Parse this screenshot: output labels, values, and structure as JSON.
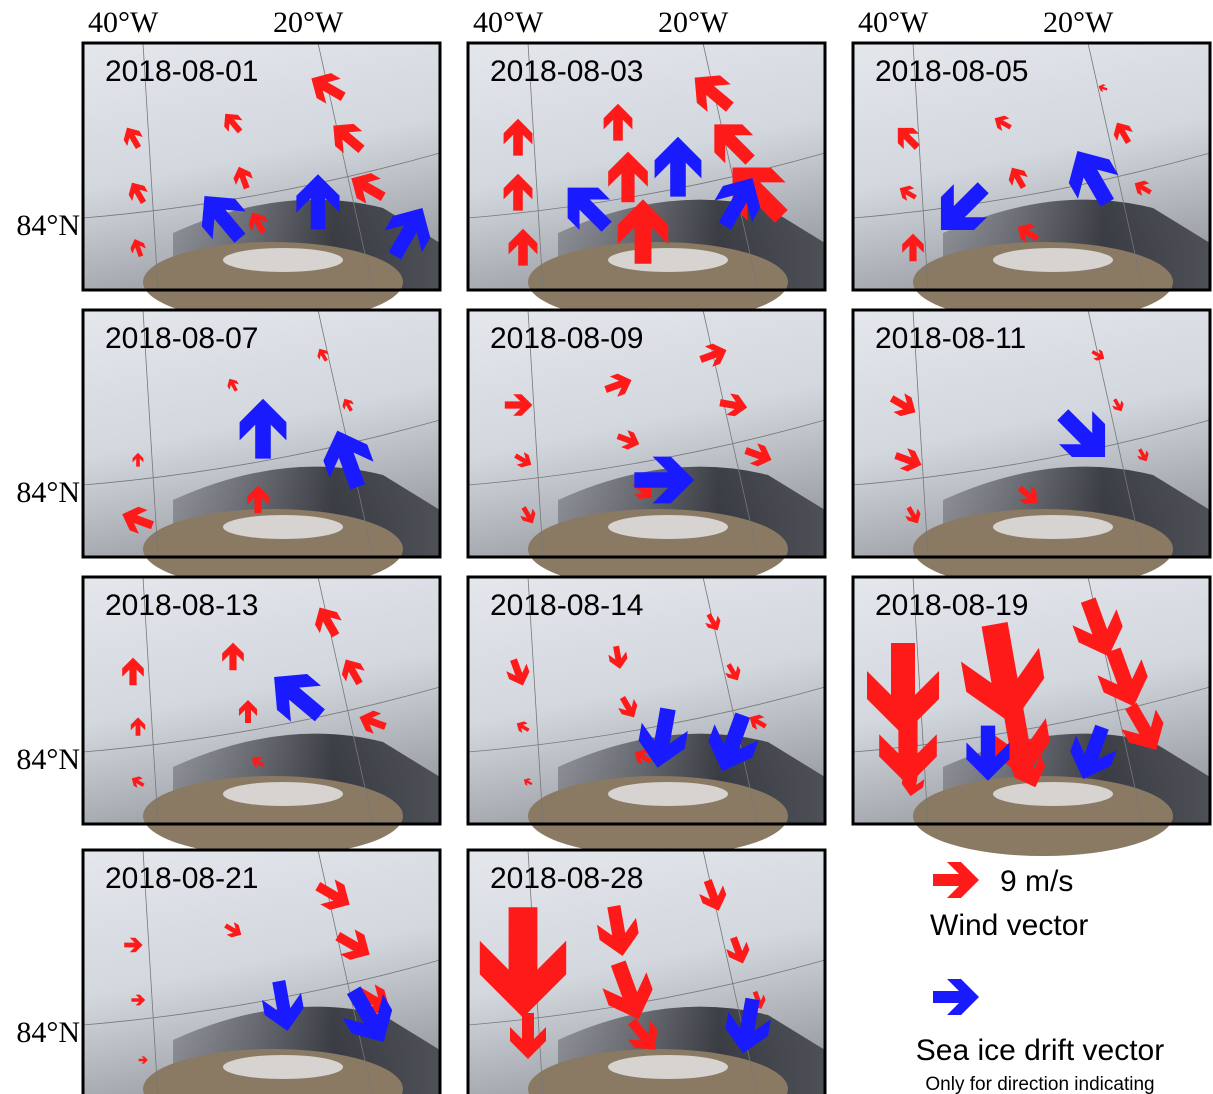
{
  "column_labels": [
    "40°W",
    "20°W"
  ],
  "row_label": "84°N",
  "panels": [
    {
      "date": "2018-08-01"
    },
    {
      "date": "2018-08-03"
    },
    {
      "date": "2018-08-05"
    },
    {
      "date": "2018-08-07"
    },
    {
      "date": "2018-08-09"
    },
    {
      "date": "2018-08-11"
    },
    {
      "date": "2018-08-13"
    },
    {
      "date": "2018-08-14"
    },
    {
      "date": "2018-08-19"
    },
    {
      "date": "2018-08-21"
    },
    {
      "date": "2018-08-28"
    }
  ],
  "legend": {
    "wind_scale": "9 m/s",
    "wind_label": "Wind vector",
    "drift_label": "Sea ice drift vector",
    "drift_note": "Only for direction indicating"
  }
}
